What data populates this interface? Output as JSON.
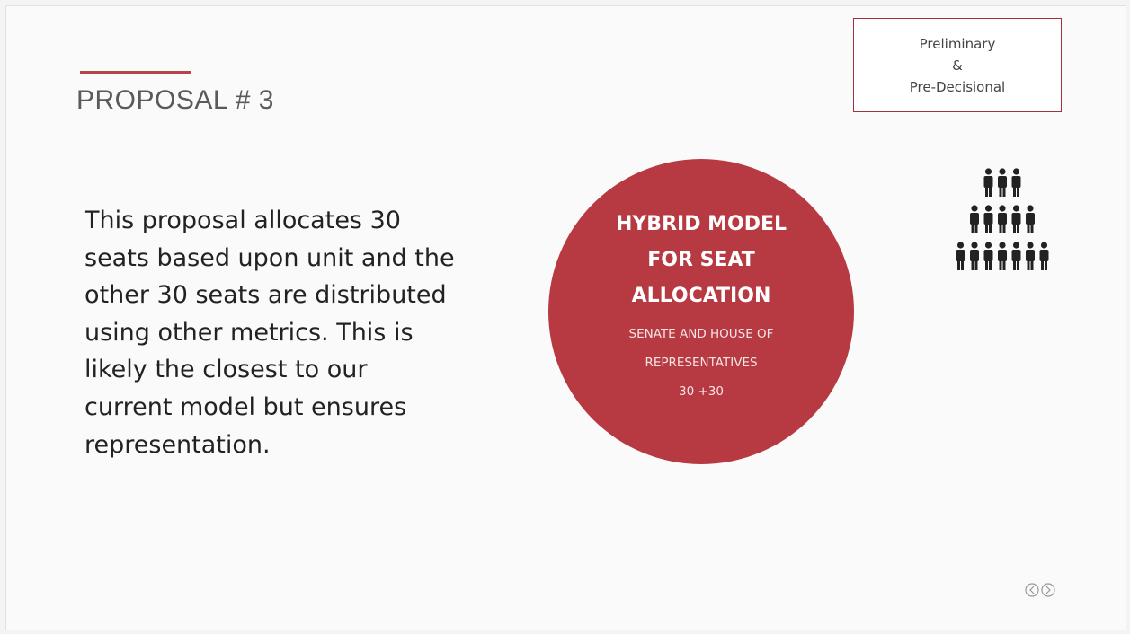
{
  "slide": {
    "title": "PROPOSAL # 3",
    "stamp": [
      "Preliminary",
      "&",
      "Pre-Decisional"
    ],
    "body_lines": [
      "This proposal allocates 30",
      "seats based upon unit and the",
      "other 30 seats are distributed",
      "using other metrics. This is",
      "likely the closest to our",
      "current model but ensures",
      "representation."
    ],
    "circle": {
      "heading": [
        "HYBRID MODEL",
        "FOR SEAT",
        "ALLOCATION"
      ],
      "subtext": [
        "SENATE AND HOUSE OF",
        "REPRESENTATIVES",
        "30 +30"
      ]
    }
  }
}
